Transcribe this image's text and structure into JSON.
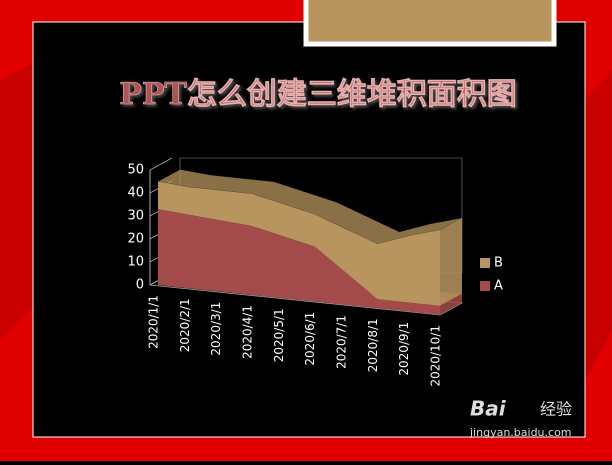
{
  "chart_data": {
    "type": "area3d",
    "title": "PPT怎么创建三维堆积面积图",
    "categories": [
      "2020/1/1",
      "2020/2/1",
      "2020/3/1",
      "2020/4/1",
      "2020/5/1",
      "2020/6/1",
      "2020/7/1",
      "2020/8/1",
      "2020/9/1",
      "2020/10/1"
    ],
    "series": [
      {
        "name": "A",
        "color": "#a34a4a",
        "values": [
          33,
          32,
          31,
          30,
          27,
          24,
          14,
          4,
          4,
          4
        ]
      },
      {
        "name": "B",
        "color": "#b8955f",
        "values": [
          12,
          12,
          13,
          14,
          14,
          14,
          19,
          24,
          29,
          33
        ]
      }
    ],
    "stacked": true,
    "ylim": [
      0,
      50
    ],
    "yticks": [
      0,
      10,
      20,
      30,
      40,
      50
    ],
    "grid": true,
    "legend": "right"
  },
  "watermark": {
    "brand": "Bai",
    "product": "经验",
    "url": "jingyan.baidu.com"
  }
}
